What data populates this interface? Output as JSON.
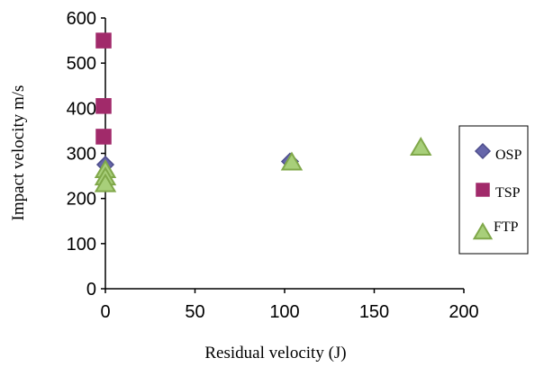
{
  "chart_data": {
    "type": "scatter",
    "title": "",
    "xlabel": "Residual velocity (J)",
    "ylabel": "Impact velocity m/s",
    "xlim": [
      0,
      200
    ],
    "ylim": [
      0,
      600
    ],
    "x_ticks": [
      "0",
      "50",
      "100",
      "150",
      "200"
    ],
    "y_ticks": [
      "0",
      "100",
      "200",
      "300",
      "400",
      "500",
      "600"
    ],
    "grid": false,
    "legend_position": "right",
    "series": [
      {
        "name": "OSP",
        "marker": "diamond",
        "color": "#6666aa",
        "edge_color": "#4e4e8c",
        "points": [
          [
            0,
            275
          ],
          [
            0,
            235
          ],
          [
            103,
            282
          ]
        ]
      },
      {
        "name": "TSP",
        "marker": "square",
        "color": "#a12a6a",
        "edge_color": "#a12a6a",
        "points": [
          [
            -1,
            550
          ],
          [
            -1,
            405
          ],
          [
            -1,
            337
          ]
        ]
      },
      {
        "name": "FTP",
        "marker": "triangle",
        "color": "#a8cf7a",
        "edge_color": "#80a84a",
        "points": [
          [
            0,
            263
          ],
          [
            0,
            247
          ],
          [
            0,
            232
          ],
          [
            104,
            280
          ],
          [
            176,
            313
          ]
        ]
      }
    ]
  }
}
